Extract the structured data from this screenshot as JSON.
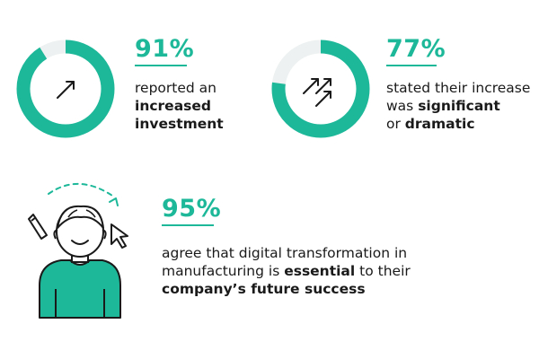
{
  "chart_data": {
    "type": "pie",
    "stats": [
      {
        "value": 91,
        "label": "91%",
        "lines": [
          [
            {
              "t": "reported an",
              "b": false
            }
          ],
          [
            {
              "t": "increased",
              "b": true
            }
          ],
          [
            {
              "t": "investment",
              "b": true
            }
          ]
        ]
      },
      {
        "value": 77,
        "label": "77%",
        "lines": [
          [
            {
              "t": "stated their increase",
              "b": false
            }
          ],
          [
            {
              "t": "was ",
              "b": false
            },
            {
              "t": "significant",
              "b": true
            }
          ],
          [
            {
              "t": "or ",
              "b": false
            },
            {
              "t": "dramatic",
              "b": true
            }
          ]
        ]
      },
      {
        "value": 95,
        "label": "95%",
        "lines": [
          [
            {
              "t": "agree that digital transformation in",
              "b": false
            }
          ],
          [
            {
              "t": "manufacturing is ",
              "b": false
            },
            {
              "t": "essential",
              "b": true
            },
            {
              "t": " to their",
              "b": false
            }
          ],
          [
            {
              "t": "company’s future success",
              "b": true
            }
          ]
        ]
      }
    ]
  },
  "colors": {
    "accent": "#1db899",
    "track": "#eef1f1",
    "text": "#1a1a1a"
  },
  "icons": {
    "stat1": "arrow-up-right-icon",
    "stat2": "double-arrow-up-right-icon",
    "stat3": "person-illustration-icon"
  }
}
